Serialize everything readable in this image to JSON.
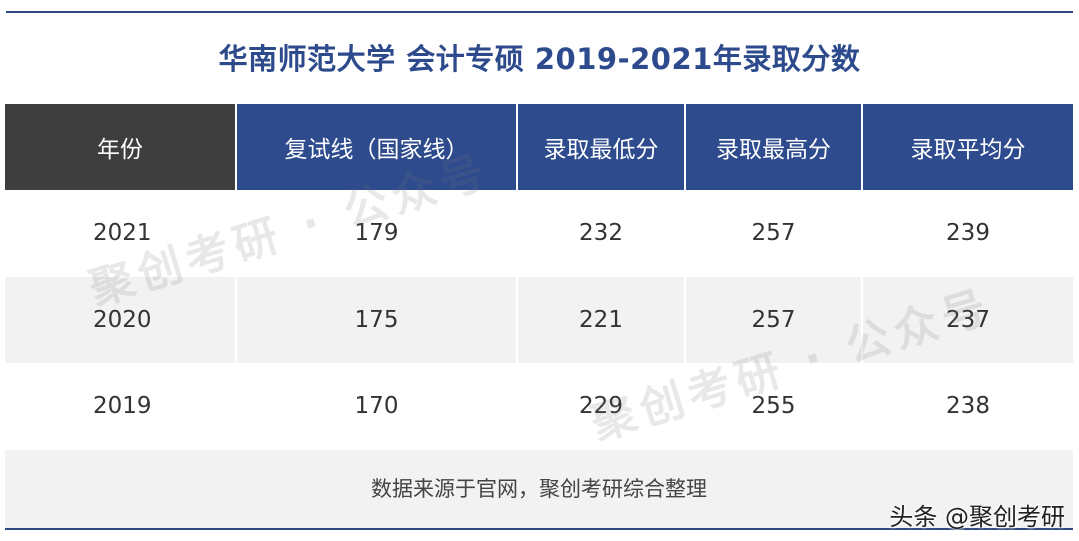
{
  "title": "华南师范大学 会计专硕 2019-2021年录取分数",
  "table": {
    "headers": [
      "年份",
      "复试线（国家线）",
      "录取最低分",
      "录取最高分",
      "录取平均分"
    ],
    "rows": [
      [
        "2021",
        "179",
        "232",
        "257",
        "239"
      ],
      [
        "2020",
        "175",
        "221",
        "257",
        "237"
      ],
      [
        "2019",
        "170",
        "229",
        "255",
        "238"
      ]
    ]
  },
  "note": "数据来源于官网，聚创考研综合整理",
  "watermark": "聚创考研 · 公众号",
  "credit": "头条 @聚创考研",
  "colors": {
    "header_blue": "#2e4b8e",
    "header_dark": "#3e3e3e",
    "title": "#2d4b8c",
    "shade": "#f2f2f2"
  }
}
